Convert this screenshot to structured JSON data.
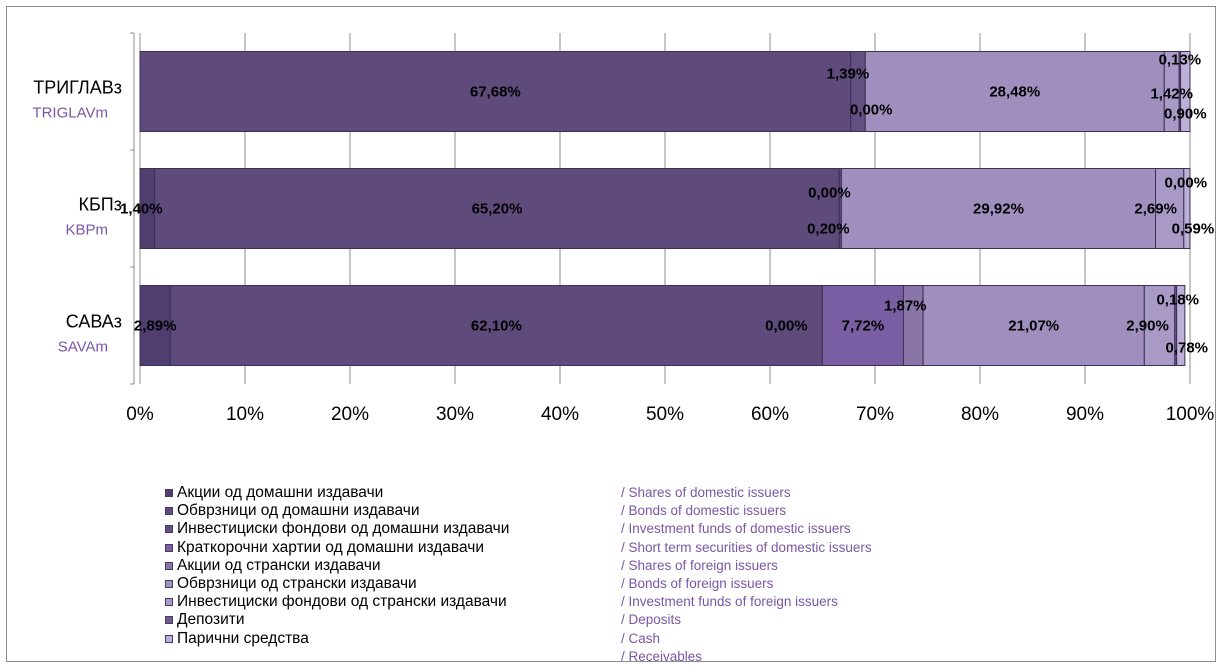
{
  "chart_data": {
    "type": "bar",
    "orientation": "horizontal",
    "stacked": "percent",
    "categories": [
      {
        "label": "ТРИГЛАВз",
        "label_en": "TRIGLAVm"
      },
      {
        "label": "КБПз",
        "label_en": "KBPm"
      },
      {
        "label": "САВАз",
        "label_en": "SAVAm"
      }
    ],
    "series": [
      {
        "name": "Акции од домашни издавачи",
        "name_en": "/ Shares of domestic issuers",
        "color": "#4f3e6e",
        "values": [
          null,
          1.4,
          2.89
        ],
        "labels": [
          "",
          "1,40%",
          "2,89%"
        ]
      },
      {
        "name": "Обврзници од домашни издавачи",
        "name_en": "/ Bonds of domestic issuers",
        "color": "#5f4a7c",
        "values": [
          67.68,
          65.2,
          62.1
        ],
        "labels": [
          "67,68%",
          "65,20%",
          "62,10%"
        ]
      },
      {
        "name": "Инвестициски фондови од домашни издавачи",
        "name_en": "/ Investment funds of domestic issuers",
        "color": "#625080",
        "values": [
          1.39,
          0.2,
          0.0
        ],
        "labels": [
          "1,39%",
          "0,20%",
          "0,00%"
        ]
      },
      {
        "name": "Краткорочни хартии од домашни издавачи",
        "name_en": "/ Short term securities of domestic issuers",
        "color": "#7a5ea3",
        "values": [
          0.0,
          0.0,
          7.72
        ],
        "labels": [
          "0,00%",
          "0,00%",
          "7,72%"
        ]
      },
      {
        "name": "Акции од странски издавачи",
        "name_en": "/ Shares of foreign issuers",
        "color": "#8a75a8",
        "values": [
          null,
          null,
          1.87
        ],
        "labels": [
          "",
          "",
          "1,87%"
        ]
      },
      {
        "name": "Обврзници од странски издавачи",
        "name_en": "/ Bonds of foreign issuers",
        "color": "#a08fbe",
        "values": [
          28.48,
          29.92,
          21.07
        ],
        "labels": [
          "28,48%",
          "29,92%",
          "21,07%"
        ]
      },
      {
        "name": "Инвестициски фондови од странски издавачи",
        "name_en": "/ Investment funds of foreign issuers",
        "color": "#a999c6",
        "values": [
          1.42,
          2.69,
          2.9
        ],
        "labels": [
          "1,42%",
          "2,69%",
          "2,90%"
        ]
      },
      {
        "name": "Депозити",
        "name_en": "/ Deposits",
        "color": "#6e5b8e",
        "values": [
          0.13,
          0.0,
          0.18
        ],
        "labels": [
          "0,13%",
          "0,00%",
          "0,18%"
        ]
      },
      {
        "name": "Парични средства",
        "name_en": "/ Cash",
        "color": "#bdb0d6",
        "values": [
          0.9,
          0.59,
          0.78
        ],
        "labels": [
          "0,90%",
          "0,59%",
          "0,78%"
        ]
      },
      {
        "name": "",
        "name_en": "/ Receivables",
        "color": "#d2c8e6",
        "values": [
          null,
          null,
          null
        ],
        "labels": [
          "",
          "",
          ""
        ]
      }
    ],
    "xlim": [
      0,
      100
    ],
    "xticks": [
      "0%",
      "10%",
      "20%",
      "30%",
      "40%",
      "50%",
      "60%",
      "70%",
      "80%",
      "90%",
      "100%"
    ],
    "grid": true,
    "legend_position": "bottom"
  }
}
